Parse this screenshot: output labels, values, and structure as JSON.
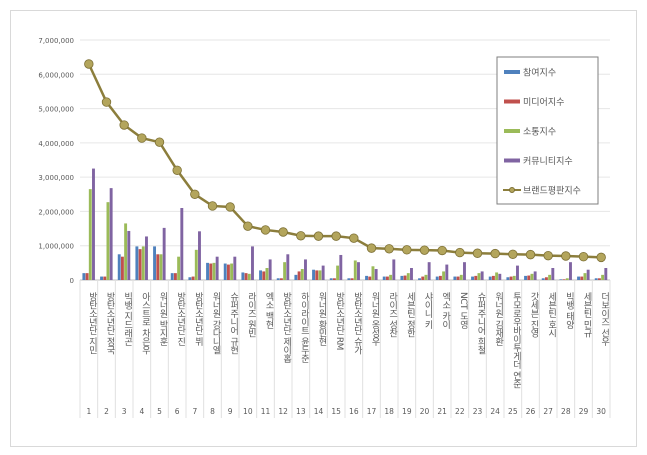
{
  "chart_data": {
    "type": "bar+line",
    "title": "",
    "xlabel": "",
    "ylabel": "",
    "ylim": [
      0,
      7000000
    ],
    "yticks": [
      "0",
      "1,000,000",
      "2,000,000",
      "3,000,000",
      "4,000,000",
      "5,000,000",
      "6,000,000",
      "7,000,000"
    ],
    "grid": true,
    "legend_placement": "top-right",
    "ranks": [
      "1",
      "2",
      "3",
      "4",
      "5",
      "6",
      "7",
      "8",
      "9",
      "10",
      "11",
      "12",
      "13",
      "14",
      "15",
      "16",
      "17",
      "18",
      "19",
      "20",
      "21",
      "22",
      "23",
      "24",
      "25",
      "26",
      "27",
      "28",
      "29",
      "30"
    ],
    "categories": [
      "방탄소년단 지민",
      "방탄소년단 정국",
      "빅뱅 지드래곤",
      "아스트로 차은우",
      "워너원 박지훈",
      "방탄소년단 진",
      "방탄소년단 뷔",
      "워너원 강다니엘",
      "슈퍼주니어 규현",
      "라이즈 원빈",
      "엑소 백현",
      "방탄소년단 제이홉",
      "하이라이트 윤두준",
      "워너원 황민현",
      "방탄소년단 RM",
      "방탄소년단 슈가",
      "워너원 옹성우",
      "라이즈 성찬",
      "세븐틴 정한",
      "샤이니 키",
      "엑소 카이",
      "NCT 도영",
      "슈퍼주니어 희철",
      "워너원 김재환",
      "투모로우바이투게더 연준",
      "갓세븐 진영",
      "세븐틴 호시",
      "빅뱅 태양",
      "세븐틴 민규",
      "더보이즈 선우"
    ],
    "series": [
      {
        "name": "참여지수",
        "kind": "bar",
        "color": "#4f81bd",
        "values": [
          200000,
          100000,
          750000,
          980000,
          980000,
          200000,
          80000,
          500000,
          480000,
          220000,
          280000,
          50000,
          150000,
          300000,
          50000,
          50000,
          120000,
          100000,
          120000,
          50000,
          100000,
          100000,
          100000,
          100000,
          80000,
          120000,
          50000,
          20000,
          100000,
          50000
        ]
      },
      {
        "name": "미디어지수",
        "kind": "bar",
        "color": "#c0504d",
        "values": [
          200000,
          100000,
          680000,
          900000,
          750000,
          200000,
          100000,
          480000,
          450000,
          200000,
          250000,
          50000,
          250000,
          280000,
          50000,
          50000,
          100000,
          100000,
          130000,
          100000,
          120000,
          100000,
          120000,
          120000,
          100000,
          130000,
          80000,
          20000,
          100000,
          50000
        ]
      },
      {
        "name": "소통지수",
        "kind": "bar",
        "color": "#9bbb59",
        "values": [
          2650000,
          2270000,
          1650000,
          980000,
          750000,
          680000,
          880000,
          500000,
          480000,
          180000,
          350000,
          520000,
          320000,
          280000,
          420000,
          570000,
          400000,
          150000,
          200000,
          150000,
          250000,
          150000,
          200000,
          220000,
          120000,
          180000,
          150000,
          50000,
          200000,
          150000
        ]
      },
      {
        "name": "커뮤니티지수",
        "kind": "bar",
        "color": "#8064a2",
        "values": [
          3250000,
          2680000,
          1430000,
          1270000,
          1520000,
          2100000,
          1420000,
          680000,
          680000,
          980000,
          600000,
          750000,
          600000,
          420000,
          730000,
          520000,
          320000,
          600000,
          350000,
          520000,
          450000,
          520000,
          250000,
          180000,
          420000,
          250000,
          350000,
          520000,
          300000,
          350000
        ]
      },
      {
        "name": "브랜드평판지수",
        "kind": "line",
        "color": "#8c7e3c",
        "values": [
          6300000,
          5190000,
          4520000,
          4140000,
          4020000,
          3200000,
          2500000,
          2160000,
          2130000,
          1570000,
          1460000,
          1400000,
          1290000,
          1280000,
          1280000,
          1220000,
          930000,
          910000,
          880000,
          870000,
          860000,
          800000,
          780000,
          770000,
          750000,
          740000,
          710000,
          700000,
          680000,
          660000
        ]
      }
    ]
  }
}
